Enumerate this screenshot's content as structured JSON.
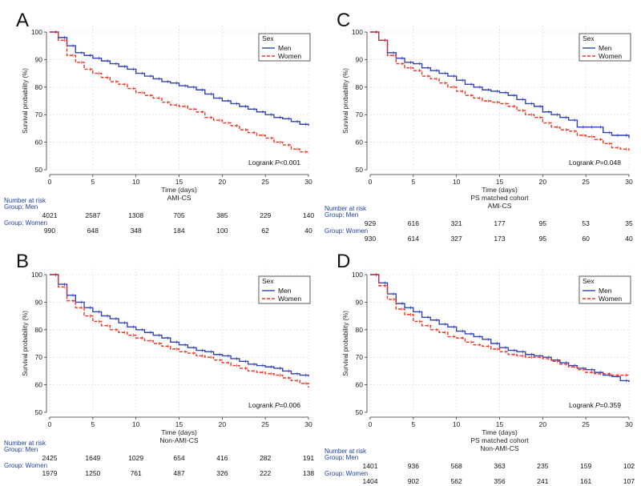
{
  "colors": {
    "men": "#3344b0",
    "women": "#ee3322",
    "grid": "#d8d8d8"
  },
  "labels": {
    "ylabel": "Survival probability (%)",
    "xlabel": "Time (days)",
    "legend_title": "Sex",
    "legend_men": "Men",
    "legend_women": "Women",
    "risk_title": "Number at risk",
    "risk_group_men": "Group: Men",
    "risk_group_women": "Group: Women"
  },
  "chart_data": [
    {
      "panel": "A",
      "type": "line",
      "title": "AMI-CS",
      "subtitle": "",
      "xlabel": "Time (days)",
      "ylabel": "Survival probability (%)",
      "xlim": [
        0,
        30
      ],
      "ylim": [
        50,
        100
      ],
      "xticks": [
        0,
        5,
        10,
        15,
        20,
        25,
        30
      ],
      "yticks": [
        50,
        60,
        70,
        80,
        90,
        100
      ],
      "annotation": {
        "prefix": "Logrank ",
        "p": "P",
        "value": "<0.001"
      },
      "series": [
        {
          "name": "Men",
          "x": [
            0,
            1,
            2,
            3,
            4,
            5,
            6,
            7,
            8,
            9,
            10,
            11,
            12,
            13,
            14,
            15,
            16,
            17,
            18,
            19,
            20,
            21,
            22,
            23,
            24,
            25,
            26,
            27,
            28,
            29,
            30
          ],
          "y": [
            100,
            98,
            95,
            92.5,
            91.5,
            90.5,
            89.5,
            88.5,
            87.5,
            86.5,
            85,
            84,
            83,
            82,
            81.5,
            80.5,
            80,
            79,
            77.5,
            76,
            75,
            74,
            73,
            72,
            71,
            70,
            69,
            68.5,
            67.5,
            66.5,
            66
          ]
        },
        {
          "name": "Women",
          "x": [
            0,
            1,
            2,
            3,
            4,
            5,
            6,
            7,
            8,
            9,
            10,
            11,
            12,
            13,
            14,
            15,
            16,
            17,
            18,
            19,
            20,
            21,
            22,
            23,
            24,
            25,
            26,
            27,
            28,
            29,
            30
          ],
          "y": [
            100,
            97,
            91.5,
            89,
            86.5,
            85,
            83.5,
            82,
            81,
            79.5,
            78,
            77,
            76,
            74.5,
            73.5,
            73,
            72,
            71,
            69,
            68,
            67,
            66,
            64.5,
            63.5,
            62.5,
            61.5,
            60,
            59,
            57.5,
            56.5,
            56
          ]
        }
      ],
      "risk": {
        "men": [
          "4021",
          "2587",
          "1308",
          "705",
          "385",
          "229",
          "140"
        ],
        "women": [
          "990",
          "648",
          "348",
          "184",
          "100",
          "62",
          "40"
        ]
      }
    },
    {
      "panel": "C",
      "type": "line",
      "title": "PS matched cohort",
      "subtitle": "AMI-CS",
      "xlabel": "Time (days)",
      "ylabel": "Survival probability (%)",
      "xlim": [
        0,
        30
      ],
      "ylim": [
        50,
        100
      ],
      "xticks": [
        0,
        5,
        10,
        15,
        20,
        25,
        30
      ],
      "yticks": [
        50,
        60,
        70,
        80,
        90,
        100
      ],
      "annotation": {
        "prefix": "Logrank ",
        "p": "P",
        "value": "=0.048"
      },
      "series": [
        {
          "name": "Men",
          "x": [
            0,
            1,
            2,
            3,
            4,
            5,
            6,
            7,
            8,
            9,
            10,
            11,
            12,
            13,
            14,
            15,
            16,
            17,
            18,
            19,
            20,
            21,
            22,
            23,
            24,
            25,
            26,
            27,
            28,
            29,
            30
          ],
          "y": [
            100,
            97,
            92.5,
            90.5,
            89,
            88.5,
            87,
            86,
            85,
            84,
            82.5,
            81,
            80,
            79,
            78.5,
            78,
            77,
            75.5,
            74,
            73,
            71,
            70,
            69,
            68,
            65.5,
            65.5,
            65.5,
            63.5,
            62.5,
            62.5,
            61.5
          ]
        },
        {
          "name": "Women",
          "x": [
            0,
            1,
            2,
            3,
            4,
            5,
            6,
            7,
            8,
            9,
            10,
            11,
            12,
            13,
            14,
            15,
            16,
            17,
            18,
            19,
            20,
            21,
            22,
            23,
            24,
            25,
            26,
            27,
            28,
            29,
            30
          ],
          "y": [
            100,
            97,
            91.5,
            88.5,
            87,
            86,
            84,
            83,
            81.5,
            80,
            78.5,
            77,
            76,
            75,
            74.5,
            74,
            73,
            71.5,
            70,
            69,
            67,
            65.5,
            64.5,
            64,
            62.5,
            62,
            61,
            59.5,
            58,
            57.5,
            57
          ]
        }
      ],
      "risk": {
        "men": [
          "929",
          "616",
          "321",
          "177",
          "95",
          "53",
          "35"
        ],
        "women": [
          "930",
          "614",
          "327",
          "173",
          "95",
          "60",
          "40"
        ]
      }
    },
    {
      "panel": "B",
      "type": "line",
      "title": "Non-AMI-CS",
      "subtitle": "",
      "xlabel": "Time (days)",
      "ylabel": "Survival probability (%)",
      "xlim": [
        0,
        30
      ],
      "ylim": [
        50,
        100
      ],
      "xticks": [
        0,
        5,
        10,
        15,
        20,
        25,
        30
      ],
      "yticks": [
        50,
        60,
        70,
        80,
        90,
        100
      ],
      "annotation": {
        "prefix": "Logrank ",
        "p": "P",
        "value": "=0.006"
      },
      "series": [
        {
          "name": "Men",
          "x": [
            0,
            1,
            2,
            3,
            4,
            5,
            6,
            7,
            8,
            9,
            10,
            11,
            12,
            13,
            14,
            15,
            16,
            17,
            18,
            19,
            20,
            21,
            22,
            23,
            24,
            25,
            26,
            27,
            28,
            29,
            30
          ],
          "y": [
            100,
            96.5,
            92.5,
            90,
            88,
            86.5,
            85,
            84,
            82.5,
            81,
            80,
            79,
            78,
            77,
            75.5,
            74.5,
            73.5,
            72.5,
            72,
            71,
            70.5,
            69.5,
            68.5,
            67.5,
            67,
            66.5,
            66,
            65,
            64,
            63.5,
            63
          ]
        },
        {
          "name": "Women",
          "x": [
            0,
            1,
            2,
            3,
            4,
            5,
            6,
            7,
            8,
            9,
            10,
            11,
            12,
            13,
            14,
            15,
            16,
            17,
            18,
            19,
            20,
            21,
            22,
            23,
            24,
            25,
            26,
            27,
            28,
            29,
            30
          ],
          "y": [
            100,
            95.5,
            90.5,
            88,
            85,
            83,
            81.5,
            80,
            79,
            78,
            77,
            76,
            75,
            74,
            73,
            72,
            71.5,
            70.5,
            70,
            69,
            68,
            67,
            66,
            65,
            64.5,
            64,
            63.5,
            62.5,
            61.5,
            60.5,
            59
          ]
        }
      ],
      "risk": {
        "men": [
          "2425",
          "1649",
          "1029",
          "654",
          "416",
          "282",
          "191"
        ],
        "women": [
          "1979",
          "1250",
          "761",
          "487",
          "326",
          "222",
          "138"
        ]
      }
    },
    {
      "panel": "D",
      "type": "line",
      "title": "PS matched cohort",
      "subtitle": "Non-AMI-CS",
      "xlabel": "Time (days)",
      "ylabel": "Survival probability (%)",
      "xlim": [
        0,
        30
      ],
      "ylim": [
        50,
        100
      ],
      "xticks": [
        0,
        5,
        10,
        15,
        20,
        25,
        30
      ],
      "yticks": [
        50,
        60,
        70,
        80,
        90,
        100
      ],
      "annotation": {
        "prefix": "Logrank ",
        "p": "P",
        "value": "=0.359"
      },
      "series": [
        {
          "name": "Men",
          "x": [
            0,
            1,
            2,
            3,
            4,
            5,
            6,
            7,
            8,
            9,
            10,
            11,
            12,
            13,
            14,
            15,
            16,
            17,
            18,
            19,
            20,
            21,
            22,
            23,
            24,
            25,
            26,
            27,
            28,
            29,
            30
          ],
          "y": [
            100,
            97,
            93,
            89.5,
            88,
            86.5,
            84.5,
            83.5,
            82,
            81,
            79.5,
            78.5,
            77.5,
            76.5,
            75,
            73.5,
            72.5,
            72,
            71,
            70.5,
            70,
            69,
            68,
            67,
            66,
            65.5,
            64.5,
            63.5,
            63,
            61.5,
            61
          ]
        },
        {
          "name": "Women",
          "x": [
            0,
            1,
            2,
            3,
            4,
            5,
            6,
            7,
            8,
            9,
            10,
            11,
            12,
            13,
            14,
            15,
            16,
            17,
            18,
            19,
            20,
            21,
            22,
            23,
            24,
            25,
            26,
            27,
            28,
            29,
            30
          ],
          "y": [
            100,
            96,
            91,
            87.5,
            85.5,
            83,
            81.5,
            80,
            79,
            77.5,
            77,
            75.5,
            74.5,
            74,
            73,
            72,
            71,
            70.5,
            70,
            70,
            69.5,
            68.5,
            67.5,
            66.5,
            65.5,
            64.5,
            64,
            64,
            63.5,
            63.5,
            63.5
          ]
        }
      ],
      "risk": {
        "men": [
          "1401",
          "936",
          "568",
          "363",
          "235",
          "159",
          "102"
        ],
        "women": [
          "1404",
          "902",
          "562",
          "356",
          "241",
          "161",
          "107"
        ]
      }
    }
  ]
}
